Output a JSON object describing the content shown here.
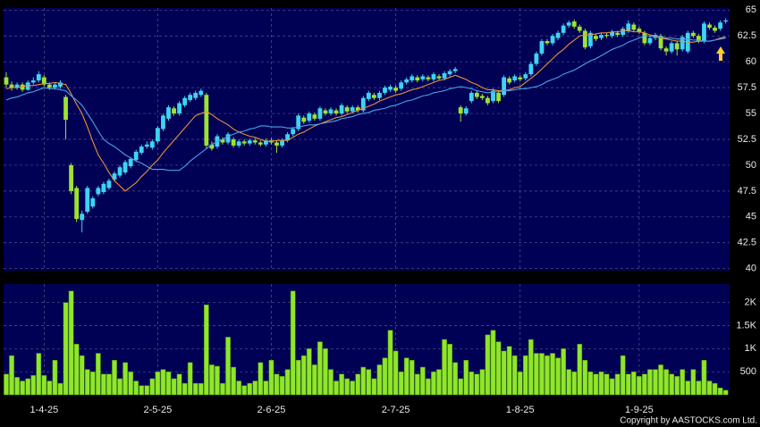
{
  "chart_data": [
    {
      "type": "candlestick",
      "categories": [
        null,
        null,
        null,
        null,
        null,
        null,
        null,
        "1-4-25",
        null,
        null,
        null,
        null,
        null,
        null,
        null,
        null,
        null,
        null,
        null,
        null,
        null,
        null,
        null,
        null,
        null,
        null,
        null,
        null,
        "2-5-25",
        null,
        null,
        null,
        null,
        null,
        null,
        null,
        null,
        null,
        null,
        null,
        null,
        null,
        null,
        null,
        null,
        null,
        null,
        null,
        null,
        "2-6-25",
        null,
        null,
        null,
        null,
        null,
        null,
        null,
        null,
        null,
        null,
        null,
        null,
        null,
        null,
        null,
        null,
        null,
        null,
        null,
        null,
        null,
        null,
        "2-7-25",
        null,
        null,
        null,
        null,
        null,
        null,
        null,
        null,
        null,
        null,
        null,
        null,
        null,
        null,
        null,
        null,
        null,
        null,
        null,
        null,
        null,
        null,
        "1-8-25",
        null,
        null,
        null,
        null,
        null,
        null,
        null,
        null,
        null,
        null,
        null,
        null,
        null,
        null,
        null,
        null,
        null,
        null,
        null,
        null,
        null,
        "1-9-25",
        null,
        null,
        null,
        null,
        null,
        null,
        null,
        null,
        null,
        null,
        null,
        null,
        null,
        null,
        null,
        null
      ],
      "open": [
        58.5,
        57.8,
        57.5,
        57.8,
        57.3,
        58.0,
        58.2,
        58.5,
        57.8,
        57.5,
        57.6,
        56.6,
        50.0,
        47.8,
        44.7,
        45.5,
        46.0,
        47.2,
        47.4,
        47.8,
        48.6,
        49.0,
        49.3,
        49.9,
        50.5,
        51.2,
        51.8,
        51.7,
        52.3,
        53.5,
        54.5,
        55.5,
        55.0,
        55.8,
        56.3,
        56.5,
        56.8,
        56.8,
        52.0,
        51.8,
        52.5,
        52.2,
        52.5,
        51.9,
        52.3,
        52.1,
        52.4,
        52.2,
        52.0,
        52.4,
        52.2,
        51.9,
        52.4,
        53.0,
        53.5,
        54.6,
        54.3,
        54.9,
        54.5,
        55.3,
        55.0,
        55.3,
        55.0,
        55.6,
        55.2,
        55.6,
        55.3,
        56.4,
        56.8,
        56.5,
        57.0,
        57.3,
        57.5,
        57.4,
        58.0,
        58.2,
        58.5,
        58.3,
        58.5,
        58.3,
        58.6,
        58.4,
        58.8,
        59.1,
        55.6,
        55.0,
        56.2,
        57.0,
        56.7,
        56.5,
        56.2,
        57.0,
        56.8,
        58.4,
        58.2,
        58.5,
        58.4,
        58.8,
        59.8,
        60.8,
        62.0,
        61.8,
        62.3,
        62.8,
        63.5,
        63.9,
        63.4,
        63.0,
        61.5,
        62.5,
        62.3,
        62.6,
        62.5,
        62.8,
        62.6,
        63.0,
        63.6,
        63.2,
        62.8,
        61.8,
        62.3,
        62.5,
        61.3,
        61.0,
        61.8,
        61.2,
        61.0,
        62.8,
        62.5,
        62.0,
        63.6,
        63.3,
        63.2,
        63.9
      ],
      "high": [
        59.0,
        58.1,
        58.0,
        58.0,
        58.2,
        58.5,
        59.1,
        58.7,
        58.0,
        58.0,
        58.2,
        56.8,
        50.2,
        48.0,
        45.6,
        48.0,
        47.0,
        48.0,
        48.4,
        48.7,
        49.4,
        50.0,
        50.5,
        50.8,
        51.5,
        52.0,
        52.3,
        52.5,
        53.8,
        55.0,
        55.8,
        55.7,
        56.2,
        56.7,
        57.0,
        57.2,
        57.4,
        57.0,
        52.3,
        53.0,
        52.7,
        53.2,
        52.7,
        52.5,
        52.5,
        52.6,
        52.6,
        52.4,
        52.6,
        52.6,
        52.4,
        52.6,
        53.2,
        53.7,
        55.0,
        54.8,
        55.2,
        55.1,
        55.7,
        55.5,
        55.6,
        55.5,
        56.0,
        55.8,
        55.8,
        55.8,
        56.7,
        57.2,
        57.0,
        57.2,
        57.7,
        57.8,
        57.7,
        58.2,
        58.5,
        58.8,
        58.7,
        58.8,
        58.7,
        59.0,
        58.8,
        59.1,
        59.3,
        59.5,
        55.8,
        55.7,
        57.2,
        57.2,
        56.9,
        56.7,
        57.4,
        57.2,
        58.7,
        58.6,
        58.8,
        58.7,
        59.0,
        60.0,
        61.0,
        62.2,
        62.2,
        62.7,
        63.0,
        63.7,
        64.0,
        64.1,
        63.6,
        63.2,
        63.0,
        62.7,
        62.8,
        62.8,
        63.1,
        63.0,
        63.4,
        64.0,
        63.8,
        63.4,
        63.0,
        62.5,
        62.8,
        62.7,
        61.5,
        62.0,
        62.0,
        62.6,
        63.0,
        63.0,
        62.7,
        63.9,
        63.8,
        63.5,
        64.0,
        64.2
      ],
      "low": [
        57.5,
        57.2,
        57.3,
        57.1,
        57.2,
        57.8,
        58.0,
        57.6,
        57.3,
        57.3,
        57.4,
        52.5,
        47.2,
        44.5,
        43.5,
        45.3,
        45.8,
        47.0,
        47.2,
        47.6,
        48.4,
        48.8,
        49.1,
        49.7,
        50.3,
        51.0,
        51.6,
        51.5,
        52.1,
        53.3,
        54.3,
        54.8,
        54.8,
        55.6,
        56.1,
        56.3,
        56.6,
        51.6,
        51.4,
        51.6,
        52.0,
        52.0,
        51.7,
        51.7,
        51.9,
        51.9,
        52.0,
        51.8,
        51.8,
        52.0,
        51.2,
        51.7,
        52.2,
        52.8,
        53.3,
        54.0,
        54.1,
        54.3,
        54.3,
        54.8,
        54.8,
        54.8,
        54.8,
        55.0,
        55.0,
        55.1,
        55.1,
        56.2,
        56.3,
        56.3,
        56.8,
        57.1,
        57.0,
        57.2,
        57.8,
        58.0,
        58.0,
        58.1,
        58.1,
        58.1,
        58.2,
        58.2,
        58.6,
        58.9,
        54.2,
        54.8,
        56.0,
        56.4,
        56.3,
        55.8,
        56.0,
        56.0,
        56.6,
        57.8,
        58.0,
        58.1,
        58.2,
        58.6,
        59.6,
        60.6,
        61.6,
        61.6,
        62.1,
        62.6,
        63.3,
        63.2,
        62.8,
        61.2,
        61.3,
        62.0,
        62.1,
        62.3,
        62.3,
        62.4,
        62.4,
        62.8,
        62.9,
        62.7,
        61.6,
        61.6,
        62.1,
        61.1,
        60.6,
        60.8,
        60.6,
        61.0,
        60.8,
        62.3,
        61.8,
        61.8,
        63.1,
        62.8,
        63.0,
        63.7
      ],
      "close": [
        57.8,
        57.5,
        57.8,
        57.3,
        58.0,
        58.2,
        58.8,
        57.8,
        57.5,
        57.8,
        58.0,
        54.4,
        47.5,
        44.8,
        45.3,
        47.8,
        46.8,
        47.8,
        48.2,
        48.5,
        49.2,
        49.8,
        50.3,
        50.6,
        51.3,
        51.8,
        52.0,
        52.3,
        53.6,
        54.8,
        55.6,
        55.0,
        56.0,
        56.5,
        56.8,
        57.0,
        57.2,
        51.9,
        51.6,
        52.8,
        52.2,
        53.0,
        51.9,
        52.3,
        52.1,
        52.4,
        52.2,
        52.0,
        52.4,
        52.2,
        51.9,
        52.4,
        53.0,
        53.5,
        54.8,
        54.2,
        55.0,
        54.5,
        55.5,
        55.0,
        55.4,
        55.0,
        55.8,
        55.2,
        55.6,
        55.3,
        56.5,
        57.0,
        56.5,
        57.0,
        57.5,
        57.6,
        57.2,
        58.0,
        58.3,
        58.6,
        58.2,
        58.6,
        58.3,
        58.8,
        58.4,
        58.9,
        59.1,
        59.3,
        55.0,
        55.5,
        57.0,
        56.6,
        56.5,
        56.0,
        57.2,
        56.2,
        58.5,
        58.0,
        58.6,
        58.3,
        58.8,
        59.8,
        60.8,
        62.0,
        61.8,
        62.5,
        62.8,
        63.5,
        63.8,
        63.4,
        63.0,
        61.4,
        62.8,
        62.2,
        62.6,
        62.5,
        62.9,
        62.6,
        63.2,
        63.7,
        63.1,
        62.9,
        61.8,
        62.3,
        62.6,
        61.3,
        61.0,
        61.8,
        61.2,
        62.4,
        62.8,
        62.5,
        62.0,
        63.7,
        63.3,
        63.0,
        63.8,
        64.0
      ],
      "up_color": "#3fd3f2",
      "down_color": "#9ee32f",
      "lines": [
        {
          "color": "#e8923a",
          "values": [
            57.4,
            57.5,
            57.5,
            57.6,
            57.7,
            57.7,
            57.8,
            57.9,
            57.9,
            58.0,
            57.9,
            57.8,
            56.9,
            55.9,
            55.0,
            53.7,
            52.3,
            51.0,
            50.2,
            49.3,
            48.5,
            48.0,
            47.5,
            47.9,
            48.3,
            48.9,
            49.4,
            50.0,
            50.5,
            51.2,
            51.8,
            52.4,
            53.0,
            53.6,
            54.2,
            54.8,
            55.0,
            55.2,
            54.9,
            54.5,
            54.2,
            53.9,
            53.5,
            53.2,
            53.0,
            52.8,
            52.7,
            52.5,
            52.3,
            52.3,
            52.4,
            52.4,
            52.4,
            52.7,
            53.0,
            53.2,
            53.5,
            53.8,
            54.0,
            54.2,
            54.4,
            54.6,
            54.7,
            54.9,
            55.1,
            55.3,
            55.5,
            55.7,
            55.9,
            56.2,
            56.4,
            56.6,
            56.8,
            56.9,
            57.1,
            57.3,
            57.4,
            57.6,
            57.8,
            58.0,
            58.2,
            58.3,
            58.5,
            58.7,
            58.5,
            58.3,
            58.0,
            57.8,
            57.5,
            57.3,
            57.3,
            57.2,
            57.2,
            57.3,
            57.5,
            57.6,
            58.0,
            58.4,
            58.8,
            59.3,
            59.8,
            60.3,
            60.8,
            61.2,
            61.7,
            62.1,
            62.5,
            62.6,
            62.6,
            62.7,
            62.8,
            62.8,
            62.9,
            62.9,
            63.0,
            63.0,
            62.9,
            62.9,
            62.8,
            62.6,
            62.5,
            62.3,
            62.2,
            62.1,
            62.0,
            62.0,
            61.9,
            61.9,
            62.0,
            62.0,
            62.0,
            62.1,
            62.3,
            62.4
          ]
        },
        {
          "color": "#4aa3e6",
          "values": [
            56.3,
            56.5,
            56.6,
            56.8,
            57.0,
            57.1,
            57.3,
            57.5,
            57.4,
            57.4,
            57.3,
            57.2,
            56.7,
            56.3,
            55.8,
            55.0,
            54.2,
            53.3,
            52.5,
            52.1,
            51.8,
            51.4,
            51.0,
            50.7,
            50.4,
            50.2,
            49.9,
            49.6,
            49.6,
            49.6,
            49.5,
            49.5,
            49.5,
            49.9,
            50.4,
            50.8,
            51.2,
            51.6,
            52.0,
            52.3,
            52.5,
            52.8,
            53.0,
            53.2,
            53.3,
            53.5,
            53.6,
            53.8,
            53.8,
            53.7,
            53.7,
            53.7,
            53.6,
            53.6,
            53.7,
            53.8,
            53.9,
            53.9,
            54.0,
            54.1,
            54.2,
            54.3,
            54.5,
            54.6,
            54.7,
            54.9,
            55.0,
            55.1,
            55.3,
            55.4,
            55.5,
            55.7,
            55.8,
            56.0,
            56.2,
            56.3,
            56.5,
            56.7,
            56.8,
            57.0,
            57.1,
            57.2,
            57.4,
            57.5,
            57.6,
            57.5,
            57.4,
            57.2,
            57.1,
            57.0,
            57.1,
            57.1,
            57.2,
            57.2,
            57.3,
            57.4,
            57.4,
            57.5,
            57.6,
            57.8,
            58.1,
            58.3,
            58.5,
            58.8,
            59.0,
            59.2,
            59.5,
            59.8,
            60.1,
            60.3,
            60.6,
            60.9,
            61.2,
            61.4,
            61.6,
            61.9,
            62.1,
            62.3,
            62.5,
            62.5,
            62.4,
            62.4,
            62.3,
            62.3,
            62.2,
            62.2,
            62.2,
            62.1,
            62.1,
            62.0,
            62.0,
            62.1,
            62.2,
            62.3
          ]
        }
      ],
      "ylim": [
        39.8,
        65.2
      ],
      "yticks": [
        40,
        42.5,
        45,
        47.5,
        50,
        52.5,
        55,
        57.5,
        60,
        62.5,
        65
      ],
      "grid": true
    },
    {
      "type": "bar",
      "values": [
        450,
        850,
        380,
        300,
        350,
        420,
        900,
        420,
        300,
        750,
        250,
        2000,
        2250,
        1100,
        850,
        550,
        500,
        900,
        450,
        450,
        750,
        350,
        700,
        500,
        300,
        200,
        200,
        350,
        500,
        550,
        500,
        350,
        450,
        250,
        700,
        250,
        250,
        1950,
        650,
        620,
        250,
        1250,
        600,
        300,
        200,
        250,
        300,
        700,
        300,
        750,
        450,
        400,
        550,
        2250,
        750,
        850,
        1000,
        650,
        1150,
        1000,
        550,
        300,
        450,
        350,
        300,
        450,
        600,
        550,
        350,
        650,
        800,
        1400,
        950,
        500,
        800,
        750,
        450,
        600,
        350,
        500,
        550,
        1200,
        1100,
        700,
        350,
        750,
        500,
        450,
        550,
        1300,
        1400,
        1150,
        950,
        1050,
        850,
        500,
        850,
        1200,
        900,
        900,
        850,
        900,
        800,
        1000,
        550,
        500,
        1100,
        750,
        500,
        450,
        500,
        450,
        350,
        450,
        850,
        450,
        500,
        400,
        450,
        550,
        550,
        650,
        550,
        450,
        400,
        550,
        300,
        550,
        300,
        750,
        300,
        250,
        150,
        100
      ],
      "color": "#8fe62a",
      "ylim": [
        0,
        2400
      ],
      "yticks": [
        500,
        {
          "value": 1000,
          "label": "1K"
        },
        {
          "value": 1500,
          "label": "1.5K"
        },
        {
          "value": 2000,
          "label": "2K"
        }
      ],
      "grid": true
    }
  ],
  "copyright": "Copyright by AASTOCKS.com Ltd."
}
